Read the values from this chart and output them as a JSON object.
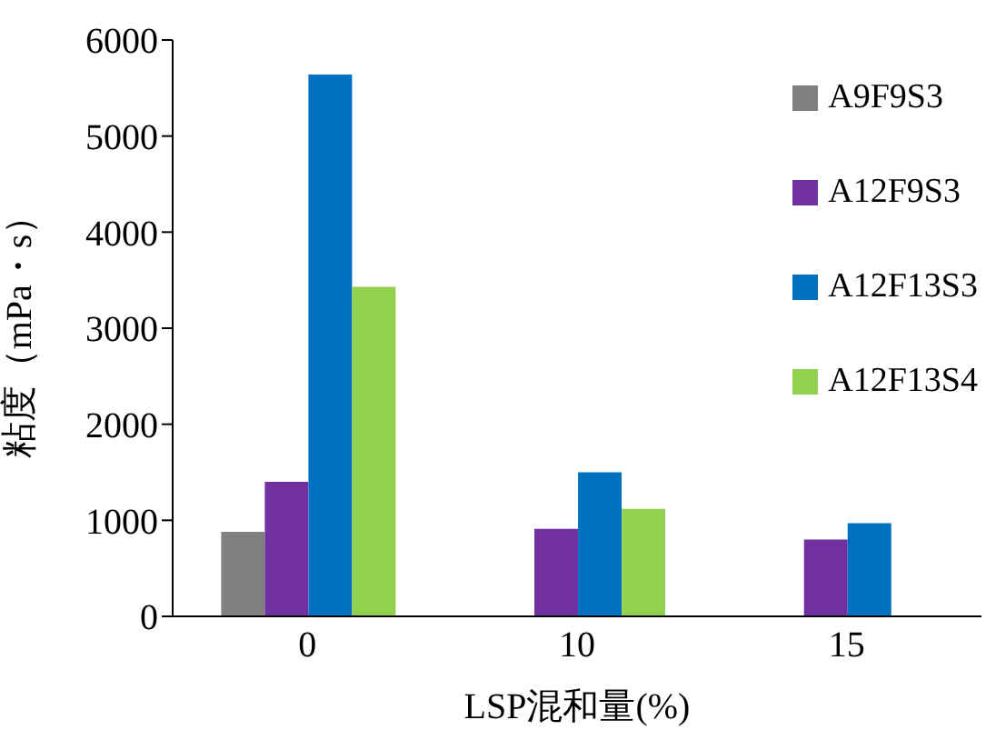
{
  "chart_data": {
    "type": "bar",
    "xlabel": "LSP混和量(%)",
    "ylabel": "粘度（mPa・s）",
    "categories": [
      "0",
      "10",
      "15"
    ],
    "series": [
      {
        "name": "A9F9S3",
        "color": "#808080",
        "values": [
          880,
          null,
          null
        ]
      },
      {
        "name": "A12F9S3",
        "color": "#7030a0",
        "values": [
          1400,
          910,
          800
        ]
      },
      {
        "name": "A12F13S3",
        "color": "#0070c0",
        "values": [
          5640,
          1500,
          970
        ]
      },
      {
        "name": "A12F13S4",
        "color": "#92d050",
        "values": [
          3430,
          1120,
          null
        ]
      }
    ],
    "ylim": [
      0,
      6000
    ],
    "yticks": [
      0,
      1000,
      2000,
      3000,
      4000,
      5000,
      6000
    ],
    "grid": false,
    "legend": "top right"
  }
}
